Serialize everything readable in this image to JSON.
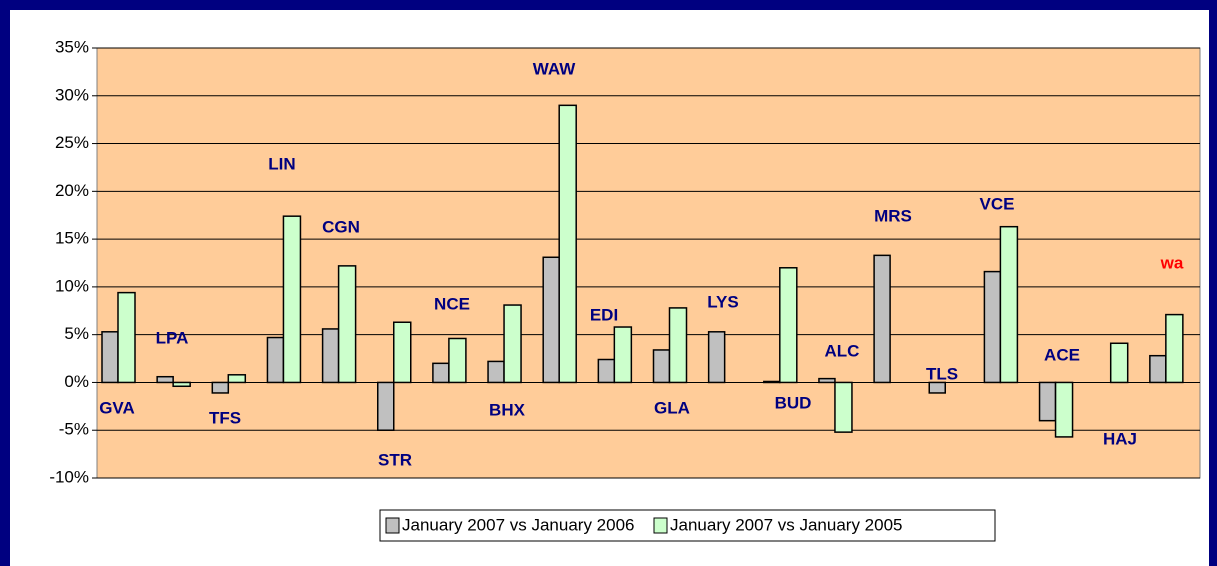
{
  "chart_data": {
    "type": "bar",
    "categories": [
      "GVA",
      "LPA",
      "TFS",
      "LIN",
      "CGN",
      "STR",
      "NCE",
      "BHX",
      "WAW",
      "EDI",
      "GLA",
      "LYS",
      "BUD",
      "ALC",
      "MRS",
      "TLS",
      "VCE",
      "ACE",
      "HAJ",
      "wa"
    ],
    "category_colors": [
      "#000080",
      "#000080",
      "#000080",
      "#000080",
      "#000080",
      "#000080",
      "#000080",
      "#000080",
      "#000080",
      "#000080",
      "#000080",
      "#000080",
      "#000080",
      "#000080",
      "#000080",
      "#000080",
      "#000080",
      "#000080",
      "#000080",
      "#ff0000"
    ],
    "series": [
      {
        "name": "January 2007 vs January 2006",
        "color": "#c0c0c0",
        "values": [
          5.3,
          0.6,
          -1.1,
          4.7,
          5.6,
          -5.0,
          2.0,
          2.2,
          13.1,
          2.4,
          3.4,
          5.3,
          0.1,
          0.4,
          13.3,
          -1.1,
          11.6,
          -4.0,
          null,
          2.8
        ]
      },
      {
        "name": "January 2007 vs January 2005",
        "color": "#ccffcc",
        "values": [
          9.4,
          -0.4,
          0.8,
          17.4,
          12.2,
          6.3,
          4.6,
          8.1,
          29.0,
          5.8,
          7.8,
          null,
          12.0,
          -5.2,
          null,
          null,
          16.3,
          -5.7,
          4.1,
          7.1
        ]
      }
    ],
    "ylim": [
      -10,
      35
    ],
    "yticks": [
      {
        "value": -10,
        "label": "-10%"
      },
      {
        "value": -5,
        "label": "-5%"
      },
      {
        "value": 0,
        "label": "0%"
      },
      {
        "value": 5,
        "label": "5%"
      },
      {
        "value": 10,
        "label": "10%"
      },
      {
        "value": 15,
        "label": "15%"
      },
      {
        "value": 20,
        "label": "20%"
      },
      {
        "value": 25,
        "label": "25%"
      },
      {
        "value": 30,
        "label": "30%"
      },
      {
        "value": 35,
        "label": "35%"
      }
    ],
    "grid": true,
    "legend": "bottom"
  }
}
